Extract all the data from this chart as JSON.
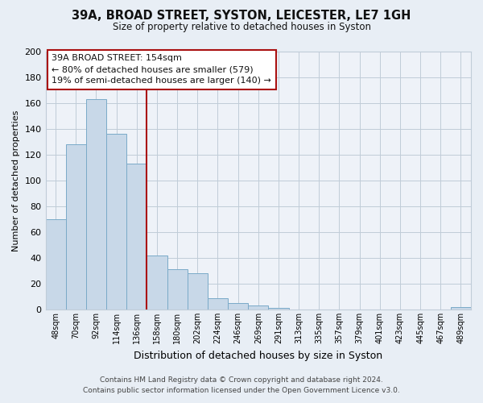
{
  "title": "39A, BROAD STREET, SYSTON, LEICESTER, LE7 1GH",
  "subtitle": "Size of property relative to detached houses in Syston",
  "xlabel": "Distribution of detached houses by size in Syston",
  "ylabel": "Number of detached properties",
  "bar_labels": [
    "48sqm",
    "70sqm",
    "92sqm",
    "114sqm",
    "136sqm",
    "158sqm",
    "180sqm",
    "202sqm",
    "224sqm",
    "246sqm",
    "269sqm",
    "291sqm",
    "313sqm",
    "335sqm",
    "357sqm",
    "379sqm",
    "401sqm",
    "423sqm",
    "445sqm",
    "467sqm",
    "489sqm"
  ],
  "bar_values": [
    70,
    128,
    163,
    136,
    113,
    42,
    31,
    28,
    9,
    5,
    3,
    1,
    0,
    0,
    0,
    0,
    0,
    0,
    0,
    0,
    2
  ],
  "bar_color": "#c8d8e8",
  "bar_edge_color": "#7aaac8",
  "vline_x": 4.5,
  "vline_color": "#aa1111",
  "ylim": [
    0,
    200
  ],
  "yticks": [
    0,
    20,
    40,
    60,
    80,
    100,
    120,
    140,
    160,
    180,
    200
  ],
  "annotation_title": "39A BROAD STREET: 154sqm",
  "annotation_line1": "← 80% of detached houses are smaller (579)",
  "annotation_line2": "19% of semi-detached houses are larger (140) →",
  "annotation_box_color": "#ffffff",
  "annotation_box_edge_color": "#aa1111",
  "footer_line1": "Contains HM Land Registry data © Crown copyright and database right 2024.",
  "footer_line2": "Contains public sector information licensed under the Open Government Licence v3.0.",
  "bg_color": "#e8eef5",
  "plot_bg_color": "#eef2f8",
  "grid_color": "#c0ccd8",
  "title_fontsize": 10.5,
  "subtitle_fontsize": 8.5
}
